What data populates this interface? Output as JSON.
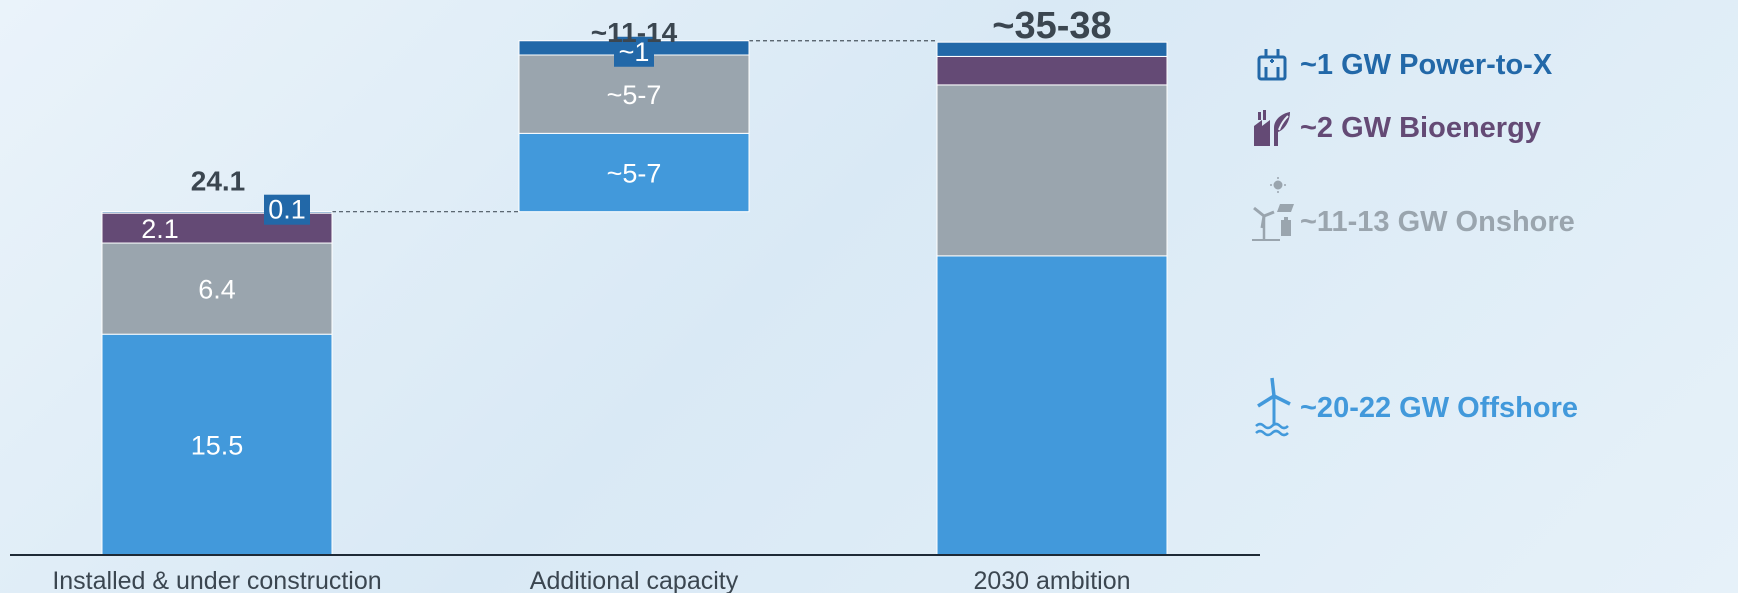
{
  "chart_data": {
    "type": "bar",
    "subtype": "stacked-waterfall",
    "categories": [
      "Installed & under construction",
      "Additional capacity",
      "2030 ambition"
    ],
    "series": [
      {
        "name": "~20-22 GW Offshore",
        "values": [
          15.5,
          5.5,
          21
        ],
        "labels": [
          "15.5",
          "~5-7",
          ""
        ]
      },
      {
        "name": "~11-13 GW Onshore",
        "values": [
          6.4,
          5.5,
          12
        ],
        "labels": [
          "6.4",
          "~5-7",
          ""
        ]
      },
      {
        "name": "~2 GW Bioenergy",
        "values": [
          2.1,
          0,
          2
        ],
        "labels": [
          "2.1",
          "",
          ""
        ]
      },
      {
        "name": "~1 GW Power-to-X",
        "values": [
          0.1,
          1,
          1
        ],
        "labels": [
          "0.1",
          "~1",
          ""
        ]
      }
    ],
    "bar_offsets": [
      0,
      24.1,
      0
    ],
    "totals": [
      "24.1",
      "~11-14",
      "~35-38"
    ],
    "ylim": [
      0,
      36
    ],
    "grid": false,
    "legend_position": "right",
    "colors": {
      "offshore": "#4299db",
      "onshore": "#9aa5ae",
      "bioenergy": "#644a75",
      "power_to_x": "#2268a8",
      "total_text": "#3b4650",
      "axis": "#1e2a36",
      "category_text": "#3b4650",
      "connector": "#4a5560"
    }
  },
  "legend": [
    {
      "label": "~1 GW Power-to-X",
      "icon": "power-to-x-icon",
      "color": "#2268a8"
    },
    {
      "label": "~2 GW Bioenergy",
      "icon": "bioenergy-icon",
      "color": "#644a75"
    },
    {
      "label": "~11-13 GW Onshore",
      "icon": "onshore-icon",
      "color": "#9aa5ae"
    },
    {
      "label": "~20-22 GW Offshore",
      "icon": "offshore-icon",
      "color": "#4299db"
    }
  ]
}
